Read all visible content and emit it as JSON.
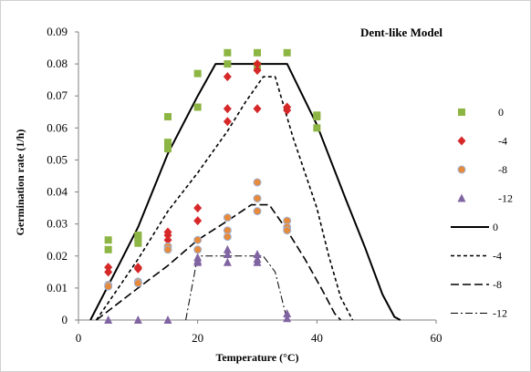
{
  "chart_data": {
    "type": "scatter",
    "title": "Dent-like Model",
    "xlabel": "Temperature (°C)",
    "ylabel": "Germination rate (1/h)",
    "xlim": [
      0,
      60
    ],
    "ylim": [
      0,
      0.09
    ],
    "x_ticks": [
      0,
      20,
      40,
      60
    ],
    "y_ticks": [
      0,
      0.01,
      0.02,
      0.03,
      0.04,
      0.05,
      0.06,
      0.07,
      0.08,
      0.09
    ],
    "x_tick_labels": [
      "0",
      "20",
      "40",
      "60"
    ],
    "y_tick_labels": [
      "0",
      "0.01",
      "0.02",
      "0.03",
      "0.04",
      "0.05",
      "0.06",
      "0.07",
      "0.08",
      "0.09"
    ],
    "grid": false,
    "legend_position": "right",
    "observed": [
      {
        "name": "0",
        "marker": "square",
        "color": "#8db543",
        "points": [
          [
            5,
            0.025
          ],
          [
            5,
            0.022
          ],
          [
            10,
            0.0265
          ],
          [
            10,
            0.0255
          ],
          [
            10,
            0.024
          ],
          [
            15,
            0.0635
          ],
          [
            15,
            0.0555
          ],
          [
            15,
            0.0535
          ],
          [
            20,
            0.077
          ],
          [
            20,
            0.0665
          ],
          [
            25,
            0.0835
          ],
          [
            25,
            0.08
          ],
          [
            30,
            0.0835
          ],
          [
            30,
            0.0795
          ],
          [
            35,
            0.0835
          ],
          [
            40,
            0.064
          ],
          [
            40,
            0.0635
          ],
          [
            40,
            0.06
          ]
        ]
      },
      {
        "name": "-4",
        "marker": "diamond",
        "color": "#d62828",
        "points": [
          [
            5,
            0.0165
          ],
          [
            5,
            0.015
          ],
          [
            10,
            0.0165
          ],
          [
            10,
            0.016
          ],
          [
            15,
            0.0275
          ],
          [
            15,
            0.0265
          ],
          [
            15,
            0.025
          ],
          [
            20,
            0.035
          ],
          [
            20,
            0.031
          ],
          [
            25,
            0.076
          ],
          [
            25,
            0.066
          ],
          [
            25,
            0.062
          ],
          [
            30,
            0.08
          ],
          [
            30,
            0.078
          ],
          [
            30,
            0.066
          ],
          [
            35,
            0.0665
          ],
          [
            35,
            0.0655
          ]
        ]
      },
      {
        "name": "-8",
        "marker": "circle",
        "color": "#e68a3c",
        "points": [
          [
            5,
            0.011
          ],
          [
            5,
            0.0105
          ],
          [
            10,
            0.012
          ],
          [
            10,
            0.0115
          ],
          [
            15,
            0.023
          ],
          [
            15,
            0.022
          ],
          [
            20,
            0.025
          ],
          [
            20,
            0.022
          ],
          [
            25,
            0.032
          ],
          [
            25,
            0.028
          ],
          [
            25,
            0.026
          ],
          [
            30,
            0.043
          ],
          [
            30,
            0.038
          ],
          [
            30,
            0.034
          ],
          [
            35,
            0.031
          ],
          [
            35,
            0.029
          ],
          [
            35,
            0.028
          ]
        ]
      },
      {
        "name": "-12",
        "marker": "triangle",
        "color": "#8064a2",
        "points": [
          [
            5,
            0
          ],
          [
            10,
            0
          ],
          [
            15,
            0
          ],
          [
            20,
            0.0195
          ],
          [
            20,
            0.0185
          ],
          [
            20,
            0.018
          ],
          [
            25,
            0.022
          ],
          [
            25,
            0.0205
          ],
          [
            25,
            0.018
          ],
          [
            30,
            0.0205
          ],
          [
            30,
            0.019
          ],
          [
            30,
            0.018
          ],
          [
            35,
            0.002
          ],
          [
            35,
            0.0005
          ]
        ]
      }
    ],
    "model": [
      {
        "name": "0",
        "dash": "solid",
        "points": [
          [
            2,
            0
          ],
          [
            7,
            0.018
          ],
          [
            10,
            0.029
          ],
          [
            15,
            0.052
          ],
          [
            20,
            0.07
          ],
          [
            23,
            0.08
          ],
          [
            35,
            0.08
          ],
          [
            40,
            0.061
          ],
          [
            45,
            0.037
          ],
          [
            48,
            0.023
          ],
          [
            51,
            0.008
          ],
          [
            53,
            0.001
          ],
          [
            54,
            0
          ]
        ]
      },
      {
        "name": "-4",
        "dash": "short",
        "points": [
          [
            3,
            0
          ],
          [
            10,
            0.019
          ],
          [
            15,
            0.034
          ],
          [
            20,
            0.046
          ],
          [
            25,
            0.059
          ],
          [
            28,
            0.068
          ],
          [
            31,
            0.076
          ],
          [
            33,
            0.076
          ],
          [
            36,
            0.057
          ],
          [
            40,
            0.035
          ],
          [
            42,
            0.02
          ],
          [
            44,
            0.007
          ],
          [
            46,
            0
          ]
        ]
      },
      {
        "name": "-8",
        "dash": "long",
        "points": [
          [
            3,
            0
          ],
          [
            10,
            0.01
          ],
          [
            15,
            0.017
          ],
          [
            20,
            0.025
          ],
          [
            25,
            0.031
          ],
          [
            29,
            0.036
          ],
          [
            32,
            0.036
          ],
          [
            35,
            0.028
          ],
          [
            38,
            0.019
          ],
          [
            41,
            0.009
          ],
          [
            43,
            0.002
          ],
          [
            44,
            0
          ]
        ]
      },
      {
        "name": "-12",
        "dash": "dashdot",
        "points": [
          [
            18,
            0
          ],
          [
            20,
            0.02
          ],
          [
            31,
            0.02
          ],
          [
            33,
            0.015
          ],
          [
            35,
            0
          ]
        ]
      }
    ]
  }
}
